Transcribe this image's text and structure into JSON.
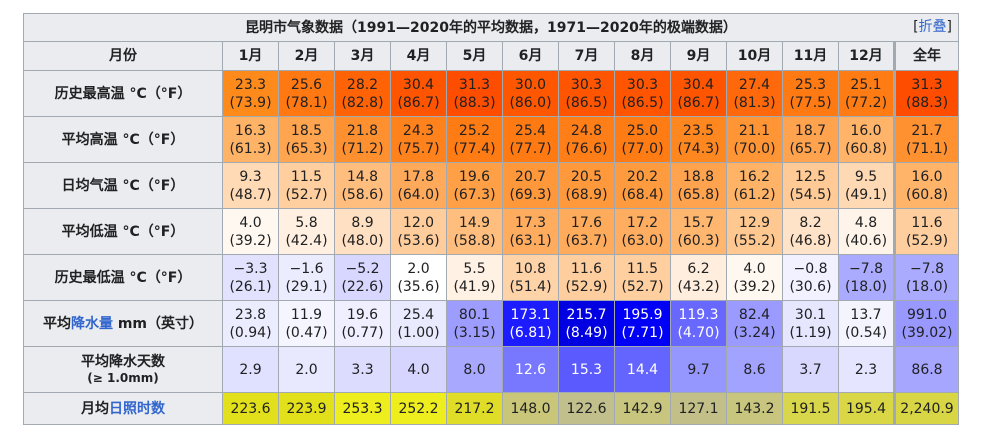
{
  "caption": "昆明市气象数据（1991—2020年的平均数据，1971—2020年的极端数据）",
  "collapse": {
    "open": "[",
    "link": "折叠",
    "close": "]"
  },
  "header": {
    "label": "月份",
    "months": [
      "1月",
      "2月",
      "3月",
      "4月",
      "5月",
      "6月",
      "7月",
      "8月",
      "9月",
      "10月",
      "11月",
      "12月",
      "全年"
    ]
  },
  "rows": [
    {
      "label": "历史最高温 °C（°F）",
      "cells": [
        {
          "v": "23.3",
          "u": "(73.9)",
          "bg": "#ff8a1c"
        },
        {
          "v": "25.6",
          "u": "(78.1)",
          "bg": "#ff7811"
        },
        {
          "v": "28.2",
          "u": "(82.8)",
          "bg": "#ff6306"
        },
        {
          "v": "30.4",
          "u": "(86.7)",
          "bg": "#ff5400"
        },
        {
          "v": "31.3",
          "u": "(88.3)",
          "bg": "#ff4d00"
        },
        {
          "v": "30.0",
          "u": "(86.0)",
          "bg": "#ff5600"
        },
        {
          "v": "30.3",
          "u": "(86.5)",
          "bg": "#ff5400"
        },
        {
          "v": "30.3",
          "u": "(86.5)",
          "bg": "#ff5400"
        },
        {
          "v": "30.4",
          "u": "(86.7)",
          "bg": "#ff5400"
        },
        {
          "v": "27.4",
          "u": "(81.3)",
          "bg": "#ff690b"
        },
        {
          "v": "25.3",
          "u": "(77.5)",
          "bg": "#ff7a13"
        },
        {
          "v": "25.1",
          "u": "(77.2)",
          "bg": "#ff7b13"
        },
        {
          "v": "31.3",
          "u": "(88.3)",
          "bg": "#ff4d00"
        }
      ]
    },
    {
      "label": "平均高温 °C（°F）",
      "cells": [
        {
          "v": "16.3",
          "u": "(61.3)",
          "bg": "#ffb366"
        },
        {
          "v": "18.5",
          "u": "(65.3)",
          "bg": "#ffa550"
        },
        {
          "v": "21.8",
          "u": "(71.2)",
          "bg": "#ff9030"
        },
        {
          "v": "24.3",
          "u": "(75.7)",
          "bg": "#ff821c"
        },
        {
          "v": "25.2",
          "u": "(77.4)",
          "bg": "#ff7b14"
        },
        {
          "v": "25.4",
          "u": "(77.7)",
          "bg": "#ff7a13"
        },
        {
          "v": "24.8",
          "u": "(76.6)",
          "bg": "#ff7e17"
        },
        {
          "v": "25.0",
          "u": "(77.0)",
          "bg": "#ff7c15"
        },
        {
          "v": "23.5",
          "u": "(74.3)",
          "bg": "#ff8720"
        },
        {
          "v": "21.1",
          "u": "(70.0)",
          "bg": "#ff9534"
        },
        {
          "v": "18.7",
          "u": "(65.7)",
          "bg": "#ffa34e"
        },
        {
          "v": "16.0",
          "u": "(60.8)",
          "bg": "#ffb469"
        },
        {
          "v": "21.7",
          "u": "(71.1)",
          "bg": "#ff9131"
        }
      ]
    },
    {
      "label": "日均气温 °C（°F）",
      "cells": [
        {
          "v": "9.3",
          "u": "(48.7)",
          "bg": "#ffdab5"
        },
        {
          "v": "11.5",
          "u": "(52.7)",
          "bg": "#ffcf9f"
        },
        {
          "v": "14.8",
          "u": "(58.6)",
          "bg": "#ffbe7e"
        },
        {
          "v": "17.8",
          "u": "(64.0)",
          "bg": "#ffaa5b"
        },
        {
          "v": "19.6",
          "u": "(67.3)",
          "bg": "#ff9f46"
        },
        {
          "v": "20.7",
          "u": "(69.3)",
          "bg": "#ff983a"
        },
        {
          "v": "20.5",
          "u": "(68.9)",
          "bg": "#ff993c"
        },
        {
          "v": "20.2",
          "u": "(68.4)",
          "bg": "#ff9b3f"
        },
        {
          "v": "18.8",
          "u": "(65.8)",
          "bg": "#ffa34e"
        },
        {
          "v": "16.2",
          "u": "(61.2)",
          "bg": "#ffb367"
        },
        {
          "v": "12.5",
          "u": "(54.5)",
          "bg": "#ffca95"
        },
        {
          "v": "9.5",
          "u": "(49.1)",
          "bg": "#ffd9b3"
        },
        {
          "v": "16.0",
          "u": "(60.8)",
          "bg": "#ffb469"
        }
      ]
    },
    {
      "label": "平均低温 °C（°F）",
      "cells": [
        {
          "v": "4.0",
          "u": "(39.2)",
          "bg": "#fff8f1"
        },
        {
          "v": "5.8",
          "u": "(42.4)",
          "bg": "#fff0e2"
        },
        {
          "v": "8.9",
          "u": "(48.0)",
          "bg": "#ffe0c2"
        },
        {
          "v": "12.0",
          "u": "(53.6)",
          "bg": "#ffcd9b"
        },
        {
          "v": "14.9",
          "u": "(58.8)",
          "bg": "#ffbe7e"
        },
        {
          "v": "17.3",
          "u": "(63.1)",
          "bg": "#ffac5f"
        },
        {
          "v": "17.6",
          "u": "(63.7)",
          "bg": "#ffab5c"
        },
        {
          "v": "17.2",
          "u": "(63.0)",
          "bg": "#ffad60"
        },
        {
          "v": "15.7",
          "u": "(60.3)",
          "bg": "#ffb76f"
        },
        {
          "v": "12.9",
          "u": "(55.2)",
          "bg": "#ffc890"
        },
        {
          "v": "8.2",
          "u": "(46.8)",
          "bg": "#ffe3c8"
        },
        {
          "v": "4.8",
          "u": "(40.6)",
          "bg": "#fff4e9"
        },
        {
          "v": "11.6",
          "u": "(52.9)",
          "bg": "#ffce9e"
        }
      ]
    },
    {
      "label": "历史最低温 °C（°F）",
      "cells": [
        {
          "v": "−3.3",
          "u": "(26.1)",
          "bg": "#e2e2ff"
        },
        {
          "v": "−1.6",
          "u": "(29.1)",
          "bg": "#ececff"
        },
        {
          "v": "−5.2",
          "u": "(22.6)",
          "bg": "#d7d7ff"
        },
        {
          "v": "2.0",
          "u": "(35.6)",
          "bg": "#ffffff"
        },
        {
          "v": "5.5",
          "u": "(41.9)",
          "bg": "#fff1e4"
        },
        {
          "v": "10.8",
          "u": "(51.4)",
          "bg": "#ffd3a8"
        },
        {
          "v": "11.6",
          "u": "(52.9)",
          "bg": "#ffce9e"
        },
        {
          "v": "11.5",
          "u": "(52.7)",
          "bg": "#ffcf9f"
        },
        {
          "v": "6.2",
          "u": "(43.2)",
          "bg": "#ffeedd"
        },
        {
          "v": "4.0",
          "u": "(39.2)",
          "bg": "#fff8f1"
        },
        {
          "v": "−0.8",
          "u": "(30.6)",
          "bg": "#f1f1ff"
        },
        {
          "v": "−7.8",
          "u": "(18.0)",
          "bg": "#aaaaff"
        },
        {
          "v": "−7.8",
          "u": "(18.0)",
          "bg": "#aaaaff"
        }
      ]
    },
    {
      "label_pre": "平均",
      "label_link": "降水量",
      "label_post": " mm（英寸）",
      "cells": [
        {
          "v": "23.8",
          "u": "(0.94)",
          "bg": "#ececff"
        },
        {
          "v": "11.9",
          "u": "(0.47)",
          "bg": "#f5f5ff"
        },
        {
          "v": "19.6",
          "u": "(0.77)",
          "bg": "#efefff"
        },
        {
          "v": "25.4",
          "u": "(1.00)",
          "bg": "#eaeaff"
        },
        {
          "v": "80.1",
          "u": "(3.15)",
          "bg": "#9d9dff"
        },
        {
          "v": "173.1",
          "u": "(6.81)",
          "bg": "#1c1cff",
          "light": true
        },
        {
          "v": "215.7",
          "u": "(8.49)",
          "bg": "#0000e0",
          "light": true
        },
        {
          "v": "195.9",
          "u": "(7.71)",
          "bg": "#0000f6",
          "light": true
        },
        {
          "v": "119.3",
          "u": "(4.70)",
          "bg": "#6868ff",
          "light": true
        },
        {
          "v": "82.4",
          "u": "(3.24)",
          "bg": "#9a9aff"
        },
        {
          "v": "30.1",
          "u": "(1.19)",
          "bg": "#e6e6ff"
        },
        {
          "v": "13.7",
          "u": "(0.54)",
          "bg": "#f4f4ff"
        },
        {
          "v": "991.0",
          "u": "(39.02)",
          "bg": "#9898ff"
        }
      ]
    },
    {
      "label": "平均降水天数",
      "label_sub": "(≥ 1.0mm)",
      "cells": [
        {
          "v": "2.9",
          "bg": "#e0e0ff"
        },
        {
          "v": "2.0",
          "bg": "#e8e8ff"
        },
        {
          "v": "3.3",
          "bg": "#dcdcff"
        },
        {
          "v": "4.0",
          "bg": "#d5d5ff"
        },
        {
          "v": "8.0",
          "bg": "#a8a8ff"
        },
        {
          "v": "12.6",
          "bg": "#7878ff",
          "light": true
        },
        {
          "v": "15.3",
          "bg": "#5a5aff",
          "light": true
        },
        {
          "v": "14.4",
          "bg": "#6464ff",
          "light": true
        },
        {
          "v": "9.7",
          "bg": "#9696ff"
        },
        {
          "v": "8.6",
          "bg": "#a2a2ff"
        },
        {
          "v": "3.7",
          "bg": "#d8d8ff"
        },
        {
          "v": "2.3",
          "bg": "#e5e5ff"
        },
        {
          "v": "86.8",
          "bg": "#a6a6ff"
        }
      ]
    },
    {
      "label_pre": "月均",
      "label_link": "日照时数",
      "label_post": "",
      "cells": [
        {
          "v": "223.6",
          "bg": "#e2e01a"
        },
        {
          "v": "223.9",
          "bg": "#e2e01a"
        },
        {
          "v": "253.3",
          "bg": "#eeed1e"
        },
        {
          "v": "252.2",
          "bg": "#eeed1e"
        },
        {
          "v": "217.2",
          "bg": "#dfdd28"
        },
        {
          "v": "148.0",
          "bg": "#c9c67a"
        },
        {
          "v": "122.6",
          "bg": "#c1bf8c"
        },
        {
          "v": "142.9",
          "bg": "#c7c57e"
        },
        {
          "v": "127.1",
          "bg": "#c2c088"
        },
        {
          "v": "143.2",
          "bg": "#c7c57e"
        },
        {
          "v": "191.5",
          "bg": "#d8d64a"
        },
        {
          "v": "195.4",
          "bg": "#d9d746"
        },
        {
          "v": "2,240.9",
          "bg": "#d8d645"
        }
      ]
    }
  ]
}
